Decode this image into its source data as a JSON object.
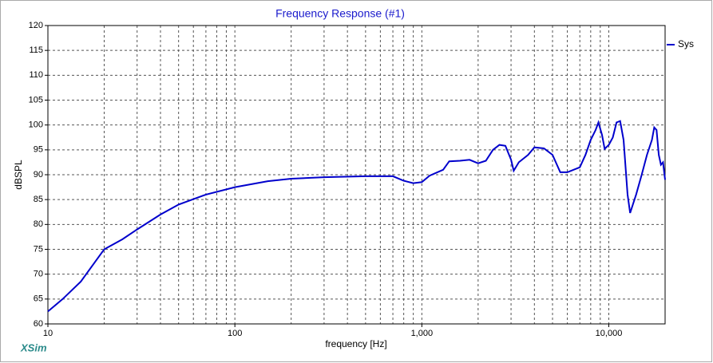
{
  "chart_data": {
    "type": "line",
    "title": "Frequency Response (#1)",
    "x_label": "frequency [Hz]",
    "y_label": "dBSPL",
    "brand": "XSim",
    "log_x": true,
    "grid": true,
    "xlim": [
      10,
      20000
    ],
    "ylim": [
      60,
      120
    ],
    "xticks": [
      10,
      100,
      {
        "value": 1000,
        "label": "1,000"
      },
      {
        "value": 10000,
        "label": "10,000"
      }
    ],
    "xgrid_minor": [
      20,
      30,
      40,
      50,
      60,
      70,
      80,
      90,
      200,
      300,
      400,
      500,
      600,
      700,
      800,
      900,
      2000,
      3000,
      4000,
      5000,
      6000,
      7000,
      8000,
      9000,
      20000
    ],
    "yticks": [
      60,
      65,
      70,
      75,
      80,
      85,
      90,
      95,
      100,
      105,
      110,
      115,
      120
    ],
    "x": [
      10,
      12,
      15,
      20,
      25,
      30,
      40,
      50,
      70,
      100,
      150,
      200,
      300,
      500,
      700,
      800,
      900,
      1000,
      1100,
      1300,
      1400,
      1600,
      1800,
      2000,
      2200,
      2400,
      2600,
      2800,
      3000,
      3100,
      3300,
      3700,
      4000,
      4500,
      5000,
      5500,
      6000,
      7000,
      7500,
      8000,
      8500,
      8800,
      9200,
      9500,
      10000,
      10500,
      11000,
      11500,
      12000,
      12600,
      13000,
      14000,
      15000,
      16000,
      17000,
      17500,
      18000,
      18500,
      19000,
      19500,
      20000
    ],
    "series": [
      {
        "name": "Sys",
        "color": "#0000cc",
        "values": [
          62.5,
          65,
          68.5,
          75,
          77,
          79,
          82,
          84,
          86,
          87.5,
          88.7,
          89.2,
          89.5,
          89.7,
          89.7,
          88.8,
          88.3,
          88.5,
          89.8,
          91,
          92.7,
          92.8,
          93,
          92.3,
          92.8,
          95,
          96,
          95.8,
          93,
          90.8,
          92.5,
          94,
          95.5,
          95.3,
          94,
          90.5,
          90.5,
          91.5,
          94,
          97,
          99,
          100.5,
          98,
          95.2,
          96,
          97.5,
          100.5,
          100.8,
          97,
          86,
          82.3,
          86,
          90,
          94,
          97,
          99.5,
          99,
          94,
          92,
          92.5,
          89
        ]
      }
    ]
  }
}
